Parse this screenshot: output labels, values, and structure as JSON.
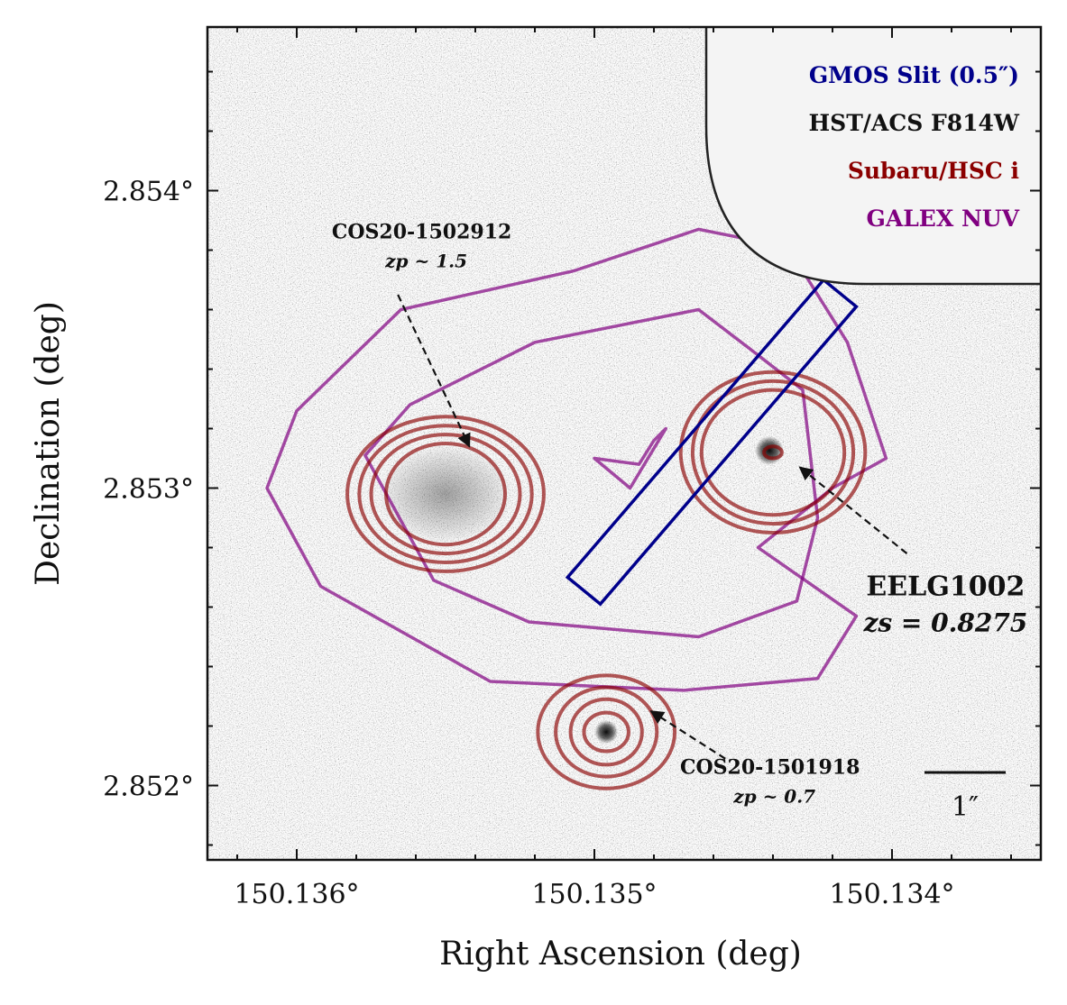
{
  "chart_data": {
    "type": "image-overlay",
    "xlabel": "Right Ascension (deg)",
    "ylabel": "Declination (deg)",
    "xlim": [
      150.1363,
      150.1335
    ],
    "ylim": [
      2.85175,
      2.85455
    ],
    "xticks": [
      {
        "value": 150.136,
        "label": "150.136°"
      },
      {
        "value": 150.135,
        "label": "150.135°"
      },
      {
        "value": 150.134,
        "label": "150.134°"
      }
    ],
    "yticks": [
      {
        "value": 2.854,
        "label": "2.854°"
      },
      {
        "value": 2.853,
        "label": "2.853°"
      },
      {
        "value": 2.852,
        "label": "2.852°"
      }
    ],
    "x_minor_step": 0.0002,
    "y_minor_step": 0.0002,
    "background_image": "HST/ACS F814W",
    "legend": {
      "placement": "top-right",
      "entries": [
        {
          "text": "GMOS Slit (0.5″)",
          "color": "#00008b"
        },
        {
          "text": "HST/ACS F814W",
          "color": "#111111"
        },
        {
          "text": "Subaru/HSC i",
          "color": "#8b0000"
        },
        {
          "text": "GALEX NUV",
          "color": "#800080"
        }
      ]
    },
    "slit": {
      "color": "#00008b",
      "corners": [
        [
          150.13498,
          2.85261
        ],
        [
          150.13509,
          2.8527
        ],
        [
          150.13423,
          2.8537
        ],
        [
          150.13412,
          2.85361
        ]
      ]
    },
    "galex_contours": {
      "color": "#800080",
      "levels": [
        [
          [
            150.13435,
            2.85381
          ],
          [
            150.13465,
            2.85387
          ],
          [
            150.13507,
            2.85373
          ],
          [
            150.13565,
            2.8536
          ],
          [
            150.136,
            2.85326
          ],
          [
            150.1361,
            2.853
          ],
          [
            150.13592,
            2.85267
          ],
          [
            150.13535,
            2.85235
          ],
          [
            150.1347,
            2.85232
          ],
          [
            150.13425,
            2.85236
          ],
          [
            150.13412,
            2.85257
          ],
          [
            150.13445,
            2.8528
          ],
          [
            150.1342,
            2.853
          ],
          [
            150.13402,
            2.8531
          ],
          [
            150.13415,
            2.85349
          ]
        ],
        [
          [
            150.13465,
            2.8536
          ],
          [
            150.1352,
            2.85349
          ],
          [
            150.13562,
            2.85328
          ],
          [
            150.13577,
            2.85311
          ],
          [
            150.13554,
            2.85269
          ],
          [
            150.13522,
            2.85255
          ],
          [
            150.13465,
            2.8525
          ],
          [
            150.13432,
            2.85262
          ],
          [
            150.13425,
            2.8529
          ],
          [
            150.1343,
            2.85333
          ],
          [
            150.13448,
            2.85347
          ]
        ],
        [
          [
            150.13476,
            2.8532
          ],
          [
            150.1348,
            2.85316
          ],
          [
            150.13485,
            2.85308
          ],
          [
            150.135,
            2.8531
          ],
          [
            150.13488,
            2.853
          ]
        ]
      ]
    },
    "hsc_contours": {
      "color": "#8b0000",
      "groups": [
        {
          "center": [
            150.1355,
            2.85298
          ],
          "radii_deg": [
            [
              0.00033,
              0.00026
            ],
            [
              0.00029,
              0.00023
            ],
            [
              0.00025,
              0.0002
            ],
            [
              0.0002,
              0.00017
            ]
          ]
        },
        {
          "center": [
            150.1344,
            2.85312
          ],
          "radii_deg": [
            [
              0.00031,
              0.00027
            ],
            [
              0.00027,
              0.00024
            ],
            [
              0.00024,
              0.00021
            ],
            [
              3e-05,
              2e-05
            ]
          ]
        },
        {
          "center": [
            150.13496,
            2.85218
          ],
          "radii_deg": [
            [
              0.00023,
              0.00019
            ],
            [
              0.00017,
              0.00015
            ],
            [
              0.00012,
              0.00011
            ],
            [
              7.5e-05,
              6.5e-05
            ]
          ]
        }
      ]
    },
    "annotations": [
      {
        "lines": [
          "COS20-1502912",
          "zp ~ 1.5"
        ],
        "text_at": [
          150.13558,
          2.85384
        ],
        "arrow_from": [
          150.13566,
          2.85365
        ],
        "arrow_to": [
          150.13542,
          2.85314
        ]
      },
      {
        "lines": [
          "EELG1002",
          "zs = 0.8275"
        ],
        "text_at": [
          150.13382,
          2.85264
        ],
        "arrow_from": [
          150.13395,
          2.85278
        ],
        "arrow_to": [
          150.13431,
          2.85307
        ]
      },
      {
        "lines": [
          "COS20-1501918",
          "zp ~ 0.7"
        ],
        "text_at": [
          150.13441,
          2.85204
        ],
        "arrow_from": [
          150.13456,
          2.85209
        ],
        "arrow_to": [
          150.13481,
          2.85225
        ]
      }
    ],
    "scale_bar": {
      "label": "1″",
      "length_arcsec": 1
    }
  }
}
